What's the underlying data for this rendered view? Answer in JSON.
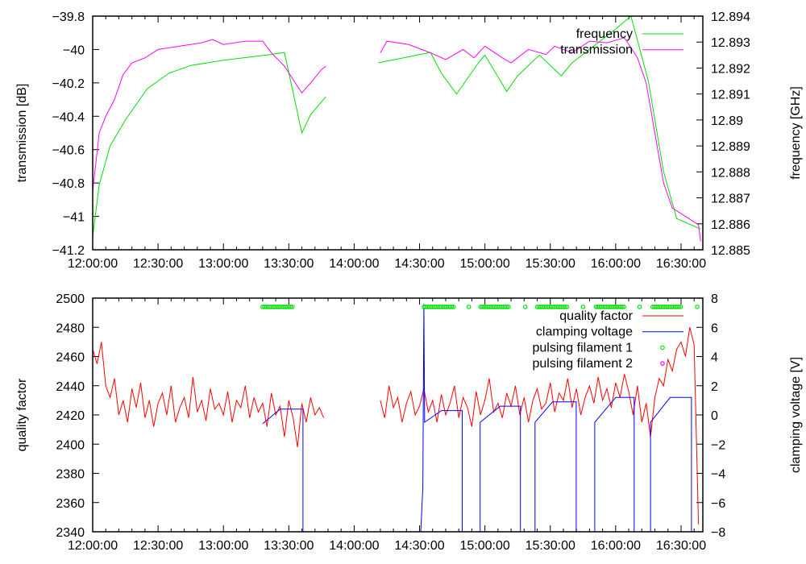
{
  "chart_data": [
    {
      "type": "line",
      "x_tick_labels": [
        "12:00:00",
        "12:30:00",
        "13:00:00",
        "13:30:00",
        "14:00:00",
        "14:30:00",
        "15:00:00",
        "15:30:00",
        "16:00:00",
        "16:30:00"
      ],
      "x_tick_minutes": [
        0,
        30,
        60,
        90,
        120,
        150,
        180,
        210,
        240,
        270
      ],
      "xlim_minutes_after_12h": [
        0,
        280
      ],
      "ylabel": "transmission [dB]",
      "y2label": "frequency [GHz]",
      "ylim": [
        -41.2,
        -39.8
      ],
      "y2lim": [
        12.885,
        12.894
      ],
      "y_tick_labels": [
        "-41.2",
        "-41",
        "-40.8",
        "-40.6",
        "-40.4",
        "-40.2",
        "-40",
        "-39.8"
      ],
      "y2_tick_labels": [
        "12.885",
        "12.886",
        "12.887",
        "12.888",
        "12.889",
        "12.89",
        "12.891",
        "12.892",
        "12.893",
        "12.894"
      ],
      "legend_position": "top-right",
      "series": [
        {
          "name": "frequency",
          "axis": "y2",
          "color": "#00e000",
          "segments": [
            [
              [
                0,
                12.8855
              ],
              [
                3,
                12.8875
              ],
              [
                8,
                12.889
              ],
              [
                15,
                12.89
              ],
              [
                25,
                12.8912
              ],
              [
                35,
                12.8918
              ],
              [
                45,
                12.8921
              ],
              [
                60,
                12.8923
              ],
              [
                80,
                12.8925
              ],
              [
                88,
                12.8926
              ],
              [
                96,
                12.8895
              ],
              [
                100,
                12.8902
              ],
              [
                107,
                12.8909
              ]
            ],
            [
              [
                131,
                12.8922
              ],
              [
                155,
                12.8926
              ],
              [
                160,
                12.8918
              ],
              [
                167,
                12.891
              ],
              [
                177,
                12.8922
              ],
              [
                180,
                12.8925
              ],
              [
                190,
                12.8911
              ],
              [
                195,
                12.8917
              ],
              [
                205,
                12.8925
              ],
              [
                215,
                12.8917
              ],
              [
                220,
                12.8922
              ],
              [
                240,
                12.8935
              ],
              [
                247,
                12.894
              ],
              [
                255,
                12.8915
              ],
              [
                262,
                12.888
              ],
              [
                268,
                12.8862
              ],
              [
                279,
                12.8858
              ]
            ]
          ]
        },
        {
          "name": "transmission",
          "axis": "y",
          "color": "#ff00ff",
          "segments": [
            [
              [
                0,
                -40.85
              ],
              [
                3,
                -40.5
              ],
              [
                6,
                -40.4
              ],
              [
                10,
                -40.3
              ],
              [
                14,
                -40.15
              ],
              [
                18,
                -40.08
              ],
              [
                24,
                -40.05
              ],
              [
                30,
                -40.0
              ],
              [
                40,
                -39.98
              ],
              [
                50,
                -39.96
              ],
              [
                55,
                -39.94
              ],
              [
                60,
                -39.97
              ],
              [
                70,
                -39.95
              ],
              [
                78,
                -39.95
              ],
              [
                82,
                -40.02
              ],
              [
                88,
                -40.1
              ],
              [
                93,
                -40.2
              ],
              [
                96,
                -40.26
              ],
              [
                100,
                -40.2
              ],
              [
                105,
                -40.12
              ],
              [
                107,
                -40.1
              ]
            ],
            [
              [
                132,
                -40.02
              ],
              [
                135,
                -39.95
              ],
              [
                145,
                -39.97
              ],
              [
                155,
                -40.02
              ],
              [
                162,
                -40.06
              ],
              [
                170,
                -40.0
              ],
              [
                175,
                -40.05
              ],
              [
                180,
                -39.98
              ],
              [
                188,
                -40.05
              ],
              [
                192,
                -40.08
              ],
              [
                200,
                -40.0
              ],
              [
                208,
                -40.03
              ],
              [
                212,
                -39.98
              ],
              [
                220,
                -40.02
              ],
              [
                228,
                -39.95
              ],
              [
                236,
                -39.96
              ],
              [
                244,
                -39.93
              ],
              [
                250,
                -40.05
              ],
              [
                254,
                -40.2
              ],
              [
                258,
                -40.5
              ],
              [
                262,
                -40.8
              ],
              [
                266,
                -40.95
              ],
              [
                272,
                -41.0
              ],
              [
                278,
                -41.05
              ],
              [
                279,
                -41.15
              ]
            ]
          ]
        }
      ]
    },
    {
      "type": "line",
      "x_tick_labels": [
        "12:00:00",
        "12:30:00",
        "13:00:00",
        "13:30:00",
        "14:00:00",
        "14:30:00",
        "15:00:00",
        "15:30:00",
        "16:00:00",
        "16:30:00"
      ],
      "x_tick_minutes": [
        0,
        30,
        60,
        90,
        120,
        150,
        180,
        210,
        240,
        270
      ],
      "xlim_minutes_after_12h": [
        0,
        280
      ],
      "ylabel": "quality factor",
      "y2label": "clamping voltage [V]",
      "ylim": [
        2340,
        2500
      ],
      "y2lim": [
        -8,
        8
      ],
      "y_tick_labels": [
        "2340",
        "2360",
        "2380",
        "2400",
        "2420",
        "2440",
        "2460",
        "2480",
        "2500"
      ],
      "y2_tick_labels": [
        "-8",
        "-6",
        "-4",
        "-2",
        "0",
        "2",
        "4",
        "6",
        "8"
      ],
      "legend_position": "top-right",
      "series": [
        {
          "name": "quality factor",
          "axis": "y",
          "color": "#ff0000",
          "segments": [
            {
              "start": 0,
              "step": 2,
              "values": [
                2465,
                2455,
                2470,
                2440,
                2432,
                2445,
                2420,
                2430,
                2415,
                2438,
                2425,
                2442,
                2418,
                2430,
                2412,
                2428,
                2435,
                2420,
                2440,
                2415,
                2425,
                2432,
                2418,
                2446,
                2422,
                2430,
                2416,
                2438,
                2424,
                2428,
                2420,
                2436,
                2415,
                2430,
                2425,
                2440,
                2418,
                2432,
                2422,
                2428,
                2412,
                2435,
                2420,
                2426,
                2405,
                2430,
                2418,
                2398,
                2428,
                2415,
                2432,
                2420,
                2425,
                2418
              ]
            },
            {
              "start": 132,
              "step": 2,
              "values": [
                2430,
                2418,
                2440,
                2425,
                2432,
                2415,
                2428,
                2436,
                2420,
                2426,
                2438,
                2422,
                2430,
                2415,
                2434,
                2420,
                2428,
                2440,
                2418,
                2432,
                2425,
                2412,
                2436,
                2420,
                2430,
                2445,
                2422,
                2428,
                2418,
                2435,
                2426,
                2440,
                2420,
                2432,
                2415,
                2430,
                2438,
                2424,
                2428,
                2442,
                2422,
                2435,
                2430,
                2445,
                2425,
                2438,
                2420,
                2432,
                2440,
                2428,
                2446,
                2430,
                2438,
                2425,
                2442,
                2432,
                2448,
                2436,
                2420,
                2440,
                2415,
                2428,
                2405,
                2432,
                2445,
                2440,
                2458,
                2450,
                2465,
                2470,
                2460,
                2480,
                2468,
                2345
              ]
            }
          ]
        },
        {
          "name": "clamping voltage",
          "axis": "y2",
          "color": "#0000ff",
          "segments": [
            [
              [
                78,
                -0.6
              ],
              [
                86,
                0.4
              ],
              [
                96.5,
                0.4
              ],
              [
                96.5,
                -8.5
              ]
            ],
            [
              [
                150.4,
                -8.5
              ],
              [
                151.5,
                -5
              ],
              [
                152,
                7.6
              ],
              [
                152.3,
                -0.5
              ],
              [
                160,
                0.3
              ],
              [
                169.6,
                0.3
              ],
              [
                169.6,
                -8.5
              ],
              [
                177.8,
                -8.5
              ],
              [
                177.8,
                -0.5
              ],
              [
                187,
                0.6
              ],
              [
                196.3,
                0.6
              ],
              [
                196.3,
                -8.5
              ],
              [
                203,
                -8.5
              ],
              [
                203,
                -0.5
              ],
              [
                211,
                0.9
              ],
              [
                221.9,
                0.9
              ],
              [
                221.9,
                -8.5
              ],
              [
                230.4,
                -8.5
              ],
              [
                230.4,
                -0.5
              ],
              [
                240,
                1.2
              ],
              [
                248.5,
                1.2
              ],
              [
                248.5,
                -8.5
              ],
              [
                256,
                -8.5
              ],
              [
                256,
                -0.5
              ],
              [
                265,
                1.2
              ],
              [
                274.8,
                1.2
              ],
              [
                274.8,
                -8.5
              ]
            ]
          ]
        },
        {
          "name": "pulsing filament 1",
          "axis": "y2",
          "color": "#00e000",
          "marker": "circle",
          "level": 7.4,
          "ranges": [
            [
              78,
              92
            ],
            [
              152,
              166
            ],
            [
              178,
              191
            ],
            [
              204,
              218
            ],
            [
              231,
              244
            ],
            [
              257,
              270
            ]
          ],
          "points": [
            172.6,
            198.5,
            225,
            251,
            277.4
          ]
        },
        {
          "name": "pulsing filament 2",
          "axis": "y2",
          "color": "#ff00ff",
          "marker": "circle",
          "ranges": [],
          "points": []
        }
      ]
    }
  ]
}
